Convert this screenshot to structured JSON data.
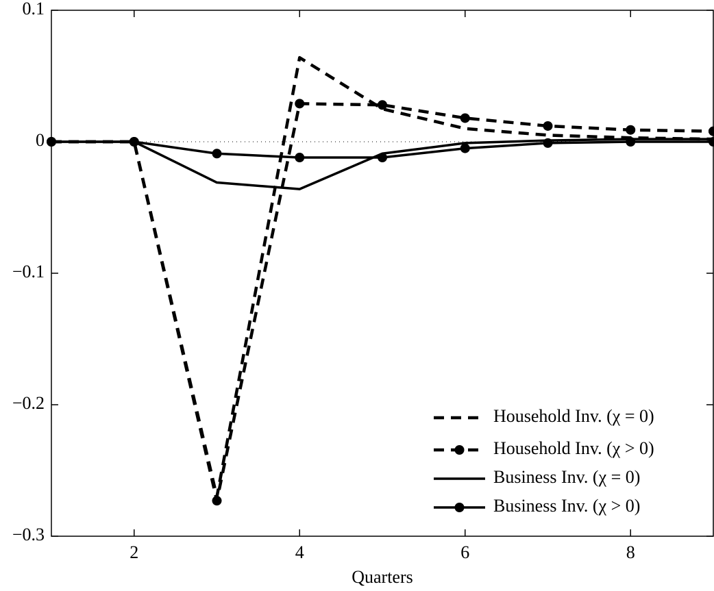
{
  "chart_data": {
    "type": "line",
    "x_label": "Quarters",
    "x": [
      1,
      2,
      3,
      4,
      5,
      6,
      7,
      8,
      9
    ],
    "xlim": [
      1,
      9
    ],
    "xticks": [
      2,
      4,
      6,
      8
    ],
    "ylim": [
      -0.3,
      0.1
    ],
    "yticks": [
      {
        "value": -0.3,
        "label": "−0.3"
      },
      {
        "value": -0.2,
        "label": "−0.2"
      },
      {
        "value": -0.1,
        "label": "−0.1"
      },
      0,
      0.1
    ],
    "zero_line": true,
    "legend": "lower right",
    "series": [
      {
        "name": "Household Inv. (χ = 0)",
        "color": "#000000",
        "dashed": true,
        "marker": false,
        "values": [
          0,
          0,
          -0.27,
          0.064,
          0.025,
          0.01,
          0.005,
          0.003,
          0.002
        ]
      },
      {
        "name": "Household Inv. (χ > 0)",
        "color": "#000000",
        "dashed": true,
        "marker": true,
        "values": [
          0,
          0,
          -0.273,
          0.029,
          0.028,
          0.018,
          0.012,
          0.009,
          0.008
        ]
      },
      {
        "name": "Business Inv. (χ = 0)",
        "color": "#000000",
        "dashed": false,
        "marker": false,
        "values": [
          0,
          0,
          -0.031,
          -0.036,
          -0.009,
          -0.001,
          0.001,
          0.002,
          0.002
        ]
      },
      {
        "name": "Business Inv. (χ > 0)",
        "color": "#000000",
        "dashed": false,
        "marker": true,
        "values": [
          0,
          0,
          -0.009,
          -0.012,
          -0.012,
          -0.005,
          -0.001,
          0,
          0
        ]
      }
    ]
  }
}
